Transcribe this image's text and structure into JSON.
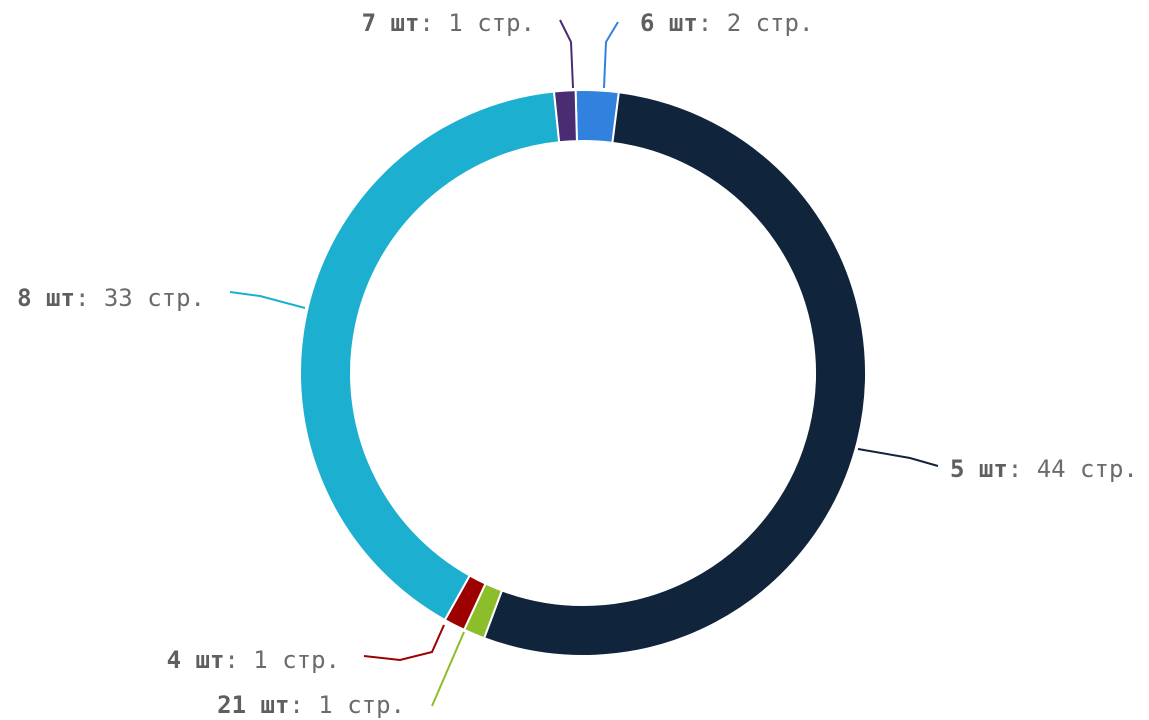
{
  "chart_data": {
    "type": "pie",
    "donut": true,
    "unit_suffix": "шт",
    "value_suffix": "стр.",
    "slices": [
      {
        "category": "6",
        "value": 2,
        "color": "#3182df"
      },
      {
        "category": "5",
        "value": 44,
        "color": "#10243b"
      },
      {
        "category": "21",
        "value": 1,
        "color": "#8cbd2a"
      },
      {
        "category": "4",
        "value": 1,
        "color": "#9c0000"
      },
      {
        "category": "8",
        "value": 33,
        "color": "#1cafd0"
      },
      {
        "category": "7",
        "value": 1,
        "color": "#4a2c73"
      }
    ]
  }
}
